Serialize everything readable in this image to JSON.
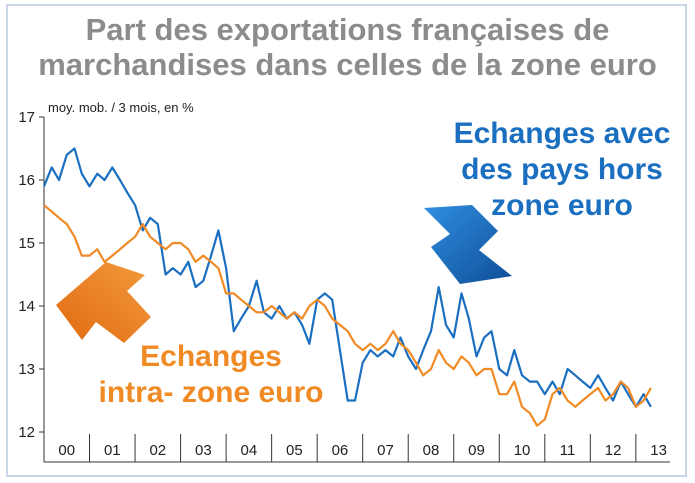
{
  "title_line1": "Part des exportations françaises de",
  "title_line2": "marchandises dans celles de la zone euro",
  "subtitle": "moy. mob. / 3 mois, en %",
  "colors": {
    "title": "#8c8c8c",
    "blue": "#1b6fc0",
    "orange": "#f08a24",
    "frame": "#c9d5e6"
  },
  "labels": {
    "blue_lines": [
      "Echanges avec",
      "des pays hors",
      "zone euro"
    ],
    "orange_lines": [
      "Echanges",
      "intra- zone euro"
    ]
  },
  "chart_data": {
    "type": "line",
    "title": "Part des exportations françaises de marchandises dans celles de la zone euro",
    "ylabel": "moy. mob. / 3 mois, en %",
    "ylim": [
      12,
      17
    ],
    "yticks": [
      12,
      13,
      14,
      15,
      16,
      17
    ],
    "xlim": [
      2000,
      2013.75
    ],
    "categories": [
      "00",
      "01",
      "02",
      "03",
      "04",
      "05",
      "06",
      "07",
      "08",
      "09",
      "10",
      "11",
      "12",
      "13"
    ],
    "grid": false,
    "legend": "none",
    "series": [
      {
        "name": "Echanges avec des pays hors zone euro",
        "color": "#1b6fc0",
        "x": [
          2000.0,
          2000.17,
          2000.33,
          2000.5,
          2000.67,
          2000.83,
          2001.0,
          2001.17,
          2001.33,
          2001.5,
          2001.67,
          2001.83,
          2002.0,
          2002.17,
          2002.33,
          2002.5,
          2002.67,
          2002.83,
          2003.0,
          2003.17,
          2003.33,
          2003.5,
          2003.67,
          2003.83,
          2004.0,
          2004.17,
          2004.33,
          2004.5,
          2004.67,
          2004.83,
          2005.0,
          2005.17,
          2005.33,
          2005.5,
          2005.67,
          2005.83,
          2006.0,
          2006.17,
          2006.33,
          2006.5,
          2006.67,
          2006.83,
          2007.0,
          2007.17,
          2007.33,
          2007.5,
          2007.67,
          2007.83,
          2008.0,
          2008.17,
          2008.33,
          2008.5,
          2008.67,
          2008.83,
          2009.0,
          2009.17,
          2009.33,
          2009.5,
          2009.67,
          2009.83,
          2010.0,
          2010.17,
          2010.33,
          2010.5,
          2010.67,
          2010.83,
          2011.0,
          2011.17,
          2011.33,
          2011.5,
          2011.67,
          2011.83,
          2012.0,
          2012.17,
          2012.33,
          2012.5,
          2012.67,
          2012.83,
          2013.0,
          2013.17,
          2013.33
        ],
        "values": [
          15.9,
          16.2,
          16.0,
          16.4,
          16.5,
          16.1,
          15.9,
          16.1,
          16.0,
          16.2,
          16.0,
          15.8,
          15.6,
          15.2,
          15.4,
          15.3,
          14.5,
          14.6,
          14.5,
          14.7,
          14.3,
          14.4,
          14.8,
          15.2,
          14.6,
          13.6,
          13.8,
          14.0,
          14.4,
          13.9,
          13.8,
          14.0,
          13.8,
          13.9,
          13.7,
          13.4,
          14.1,
          14.2,
          14.1,
          13.3,
          12.5,
          12.5,
          13.1,
          13.3,
          13.2,
          13.3,
          13.2,
          13.5,
          13.2,
          13.0,
          13.3,
          13.6,
          14.3,
          13.7,
          13.5,
          14.2,
          13.8,
          13.2,
          13.5,
          13.6,
          13.0,
          12.9,
          13.3,
          12.9,
          12.8,
          12.8,
          12.6,
          12.8,
          12.6,
          13.0,
          12.9,
          12.8,
          12.7,
          12.9,
          12.7,
          12.5,
          12.8,
          12.6,
          12.4,
          12.6,
          12.4
        ],
        "name_shown": false
      },
      {
        "name": "Echanges intra- zone euro",
        "color": "#f08a24",
        "x": [
          2000.0,
          2000.17,
          2000.33,
          2000.5,
          2000.67,
          2000.83,
          2001.0,
          2001.17,
          2001.33,
          2001.5,
          2001.67,
          2001.83,
          2002.0,
          2002.17,
          2002.33,
          2002.5,
          2002.67,
          2002.83,
          2003.0,
          2003.17,
          2003.33,
          2003.5,
          2003.67,
          2003.83,
          2004.0,
          2004.17,
          2004.33,
          2004.5,
          2004.67,
          2004.83,
          2005.0,
          2005.17,
          2005.33,
          2005.5,
          2005.67,
          2005.83,
          2006.0,
          2006.17,
          2006.33,
          2006.5,
          2006.67,
          2006.83,
          2007.0,
          2007.17,
          2007.33,
          2007.5,
          2007.67,
          2007.83,
          2008.0,
          2008.17,
          2008.33,
          2008.5,
          2008.67,
          2008.83,
          2009.0,
          2009.17,
          2009.33,
          2009.5,
          2009.67,
          2009.83,
          2010.0,
          2010.17,
          2010.33,
          2010.5,
          2010.67,
          2010.83,
          2011.0,
          2011.17,
          2011.33,
          2011.5,
          2011.67,
          2011.83,
          2012.0,
          2012.17,
          2012.33,
          2012.5,
          2012.67,
          2012.83,
          2013.0,
          2013.17,
          2013.33
        ],
        "values": [
          15.6,
          15.5,
          15.4,
          15.3,
          15.1,
          14.8,
          14.8,
          14.9,
          14.7,
          14.8,
          14.9,
          15.0,
          15.1,
          15.3,
          15.1,
          15.0,
          14.9,
          15.0,
          15.0,
          14.9,
          14.7,
          14.8,
          14.7,
          14.6,
          14.2,
          14.2,
          14.1,
          14.0,
          13.9,
          13.9,
          14.0,
          13.9,
          13.8,
          13.9,
          13.8,
          14.0,
          14.1,
          14.0,
          13.8,
          13.7,
          13.6,
          13.4,
          13.3,
          13.4,
          13.3,
          13.4,
          13.6,
          13.4,
          13.3,
          13.1,
          12.9,
          13.0,
          13.3,
          13.1,
          13.0,
          13.2,
          13.1,
          12.9,
          13.0,
          13.0,
          12.6,
          12.6,
          12.8,
          12.4,
          12.3,
          12.1,
          12.2,
          12.6,
          12.7,
          12.5,
          12.4,
          12.5,
          12.6,
          12.7,
          12.5,
          12.6,
          12.8,
          12.7,
          12.4,
          12.5,
          12.7
        ],
        "name_shown": false
      }
    ]
  }
}
